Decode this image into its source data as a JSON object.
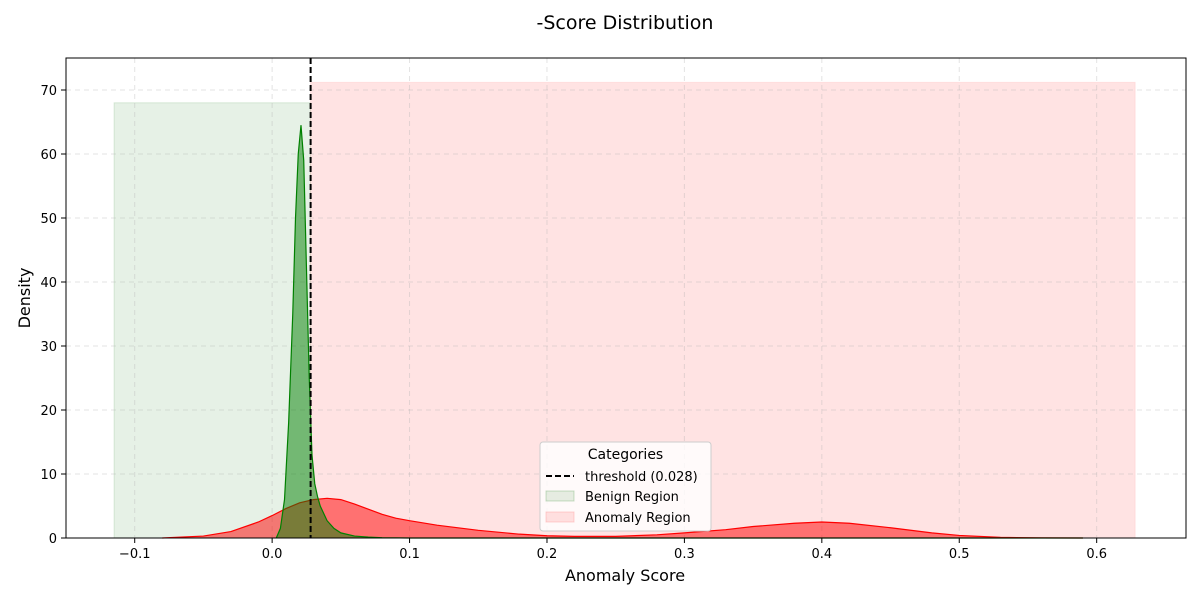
{
  "chart_data": {
    "type": "area",
    "title": "-Score Distribution",
    "xlabel": "Anomaly Score",
    "ylabel": "Density",
    "xlim": [
      -0.15,
      0.665
    ],
    "ylim": [
      0,
      75
    ],
    "xticks": [
      -0.1,
      0.0,
      0.1,
      0.2,
      0.3,
      0.4,
      0.5,
      0.6
    ],
    "xtick_labels": [
      "−0.1",
      "0.0",
      "0.1",
      "0.2",
      "0.3",
      "0.4",
      "0.5",
      "0.6"
    ],
    "yticks": [
      0,
      10,
      20,
      30,
      40,
      50,
      60,
      70
    ],
    "ytick_labels": [
      "0",
      "10",
      "20",
      "30",
      "40",
      "50",
      "60",
      "70"
    ],
    "grid": true,
    "threshold": {
      "value": 0.028,
      "label": "threshold (0.028)",
      "color": "#000000"
    },
    "regions": [
      {
        "name": "Benign Region",
        "x_start": -0.115,
        "x_end": 0.028,
        "y_top": 68,
        "color": "#2e8b2e"
      },
      {
        "name": "Anomaly Region",
        "x_start": 0.028,
        "x_end": 0.628,
        "y_top": 71.2,
        "color": "#ff9999"
      }
    ],
    "series": [
      {
        "color": "#ff0000",
        "x": [
          -0.08,
          -0.05,
          -0.03,
          -0.01,
          0.0,
          0.01,
          0.02,
          0.03,
          0.04,
          0.05,
          0.06,
          0.07,
          0.08,
          0.09,
          0.1,
          0.12,
          0.15,
          0.18,
          0.2,
          0.22,
          0.25,
          0.28,
          0.3,
          0.33,
          0.35,
          0.38,
          0.4,
          0.42,
          0.45,
          0.48,
          0.5,
          0.53,
          0.56,
          0.59
        ],
        "y": [
          0.0,
          0.3,
          1.0,
          2.5,
          3.5,
          4.6,
          5.5,
          6.0,
          6.2,
          6.0,
          5.3,
          4.5,
          3.7,
          3.1,
          2.7,
          2.0,
          1.2,
          0.6,
          0.35,
          0.25,
          0.25,
          0.5,
          0.8,
          1.3,
          1.8,
          2.3,
          2.5,
          2.3,
          1.6,
          0.8,
          0.4,
          0.1,
          0.02,
          0.0
        ]
      },
      {
        "color": "#008000",
        "x": [
          0.003,
          0.006,
          0.009,
          0.012,
          0.015,
          0.017,
          0.019,
          0.021,
          0.023,
          0.025,
          0.027,
          0.029,
          0.031,
          0.033,
          0.035,
          0.04,
          0.045,
          0.05,
          0.06,
          0.07,
          0.08,
          0.1,
          0.15,
          0.3,
          0.5,
          0.59
        ],
        "y": [
          0.0,
          1.5,
          6.0,
          18.0,
          35.0,
          50.0,
          60.0,
          64.5,
          59.0,
          42.0,
          25.0,
          13.0,
          8.5,
          6.5,
          5.0,
          2.7,
          1.5,
          0.8,
          0.3,
          0.15,
          0.05,
          0.0,
          0.0,
          0.0,
          0.0,
          0.0
        ]
      }
    ],
    "legend": {
      "title": "Categories",
      "placement": "bottom-center",
      "entries": [
        "threshold (0.028)",
        "Benign Region",
        "Anomaly Region"
      ]
    }
  }
}
